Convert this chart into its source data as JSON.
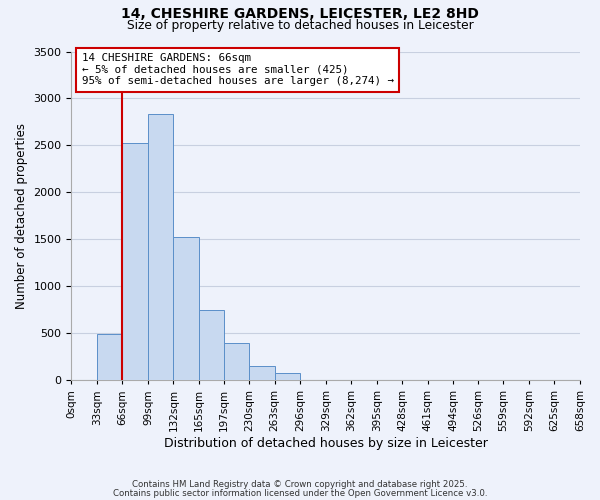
{
  "title": "14, CHESHIRE GARDENS, LEICESTER, LE2 8HD",
  "subtitle": "Size of property relative to detached houses in Leicester",
  "xlabel": "Distribution of detached houses by size in Leicester",
  "ylabel": "Number of detached properties",
  "bin_labels": [
    "0sqm",
    "33sqm",
    "66sqm",
    "99sqm",
    "132sqm",
    "165sqm",
    "197sqm",
    "230sqm",
    "263sqm",
    "296sqm",
    "329sqm",
    "362sqm",
    "395sqm",
    "428sqm",
    "461sqm",
    "494sqm",
    "526sqm",
    "559sqm",
    "592sqm",
    "625sqm",
    "658sqm"
  ],
  "bin_edges": [
    0,
    33,
    66,
    99,
    132,
    165,
    197,
    230,
    263,
    296,
    329,
    362,
    395,
    428,
    461,
    494,
    526,
    559,
    592,
    625,
    658
  ],
  "bar_heights": [
    0,
    490,
    2530,
    2840,
    1530,
    750,
    400,
    150,
    80,
    0,
    0,
    0,
    0,
    0,
    0,
    0,
    0,
    0,
    0,
    0
  ],
  "bar_color": "#c8d9f0",
  "bar_edge_color": "#5b8fc9",
  "vline_x": 66,
  "vline_color": "#cc0000",
  "ylim": [
    0,
    3500
  ],
  "yticks": [
    0,
    500,
    1000,
    1500,
    2000,
    2500,
    3000,
    3500
  ],
  "annotation_title": "14 CHESHIRE GARDENS: 66sqm",
  "annotation_line1": "← 5% of detached houses are smaller (425)",
  "annotation_line2": "95% of semi-detached houses are larger (8,274) →",
  "annotation_box_color": "#ffffff",
  "annotation_box_edge": "#cc0000",
  "footer1": "Contains HM Land Registry data © Crown copyright and database right 2025.",
  "footer2": "Contains public sector information licensed under the Open Government Licence v3.0.",
  "bg_color": "#eef2fb",
  "grid_color": "#c8d0e0"
}
